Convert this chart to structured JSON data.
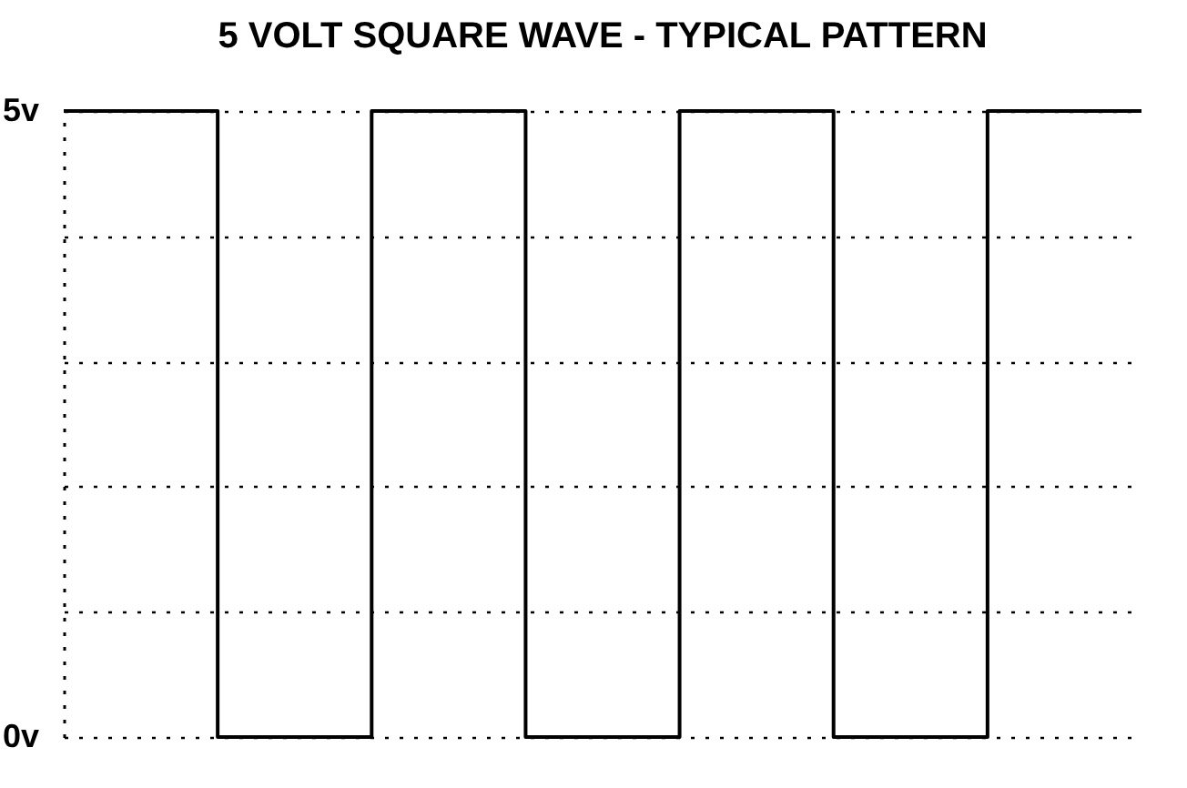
{
  "chart_data": {
    "type": "step",
    "title": "5 VOLT SQUARE WAVE - TYPICAL PATTERN",
    "categories": [
      null,
      null,
      null,
      null,
      null,
      null,
      null,
      null
    ],
    "series": [
      {
        "color": "#000000",
        "values": [
          5,
          0,
          5,
          0,
          5,
          0,
          5,
          5
        ]
      }
    ],
    "ylim": [
      0,
      5
    ],
    "yticks": [
      {
        "value": 0,
        "label": "0v"
      },
      {
        "value": 1,
        "label": null
      },
      {
        "value": 2,
        "label": null
      },
      {
        "value": 3,
        "label": null
      },
      {
        "value": 4,
        "label": null
      },
      {
        "value": 5,
        "label": "5v"
      }
    ],
    "grid": "y",
    "tick_labels": "y",
    "legend": false
  }
}
